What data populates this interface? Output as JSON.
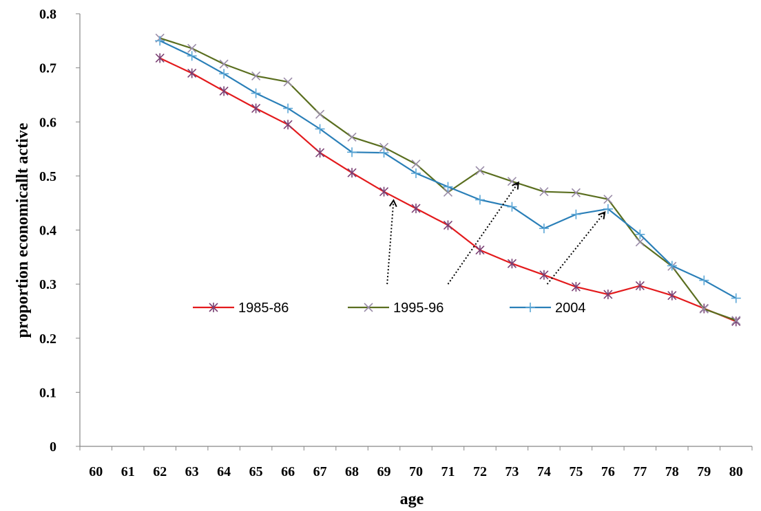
{
  "chart_data": {
    "type": "line",
    "title": "",
    "xlabel": "age",
    "ylabel": "proportion economicallt active",
    "ylim": [
      0,
      0.8
    ],
    "yticks": [
      "0",
      "0.1",
      "0.2",
      "0.3",
      "0.4",
      "0.5",
      "0.6",
      "0.7",
      "0.8"
    ],
    "categories": [
      "60",
      "61",
      "62",
      "63",
      "64",
      "65",
      "66",
      "67",
      "68",
      "69",
      "70",
      "71",
      "72",
      "73",
      "74",
      "75",
      "76",
      "77",
      "78",
      "79",
      "80"
    ],
    "grid": false,
    "legend_position": "center",
    "series": [
      {
        "name": "1985-86",
        "color": "#e31a1c",
        "marker": "star",
        "values": [
          null,
          null,
          0.718,
          0.69,
          0.657,
          0.625,
          0.595,
          0.543,
          0.506,
          0.471,
          0.44,
          0.409,
          0.363,
          0.338,
          0.317,
          0.295,
          0.281,
          0.297,
          0.279,
          0.255,
          0.231
        ]
      },
      {
        "name": "1995-96",
        "color": "#5a6e1f",
        "marker": "x",
        "values": [
          null,
          null,
          0.755,
          0.736,
          0.707,
          0.685,
          0.674,
          0.614,
          0.572,
          0.553,
          0.522,
          0.47,
          0.51,
          0.49,
          0.471,
          0.469,
          0.457,
          0.378,
          0.333,
          0.254,
          0.233
        ]
      },
      {
        "name": "2004",
        "color": "#2a7fb8",
        "marker": "plus",
        "values": [
          null,
          null,
          0.75,
          0.722,
          0.689,
          0.653,
          0.625,
          0.587,
          0.544,
          0.543,
          0.505,
          0.48,
          0.456,
          0.443,
          0.403,
          0.429,
          0.439,
          0.392,
          0.334,
          0.307,
          0.274
        ]
      }
    ],
    "annotations": [
      {
        "type": "dotted-arrow",
        "from": [
          69.1,
          0.3
        ],
        "to": [
          69.3,
          0.455
        ]
      },
      {
        "type": "dotted-arrow",
        "from": [
          71.0,
          0.3
        ],
        "to": [
          73.2,
          0.488
        ]
      },
      {
        "type": "dotted-arrow",
        "from": [
          74.1,
          0.3
        ],
        "to": [
          75.9,
          0.433
        ]
      }
    ]
  }
}
